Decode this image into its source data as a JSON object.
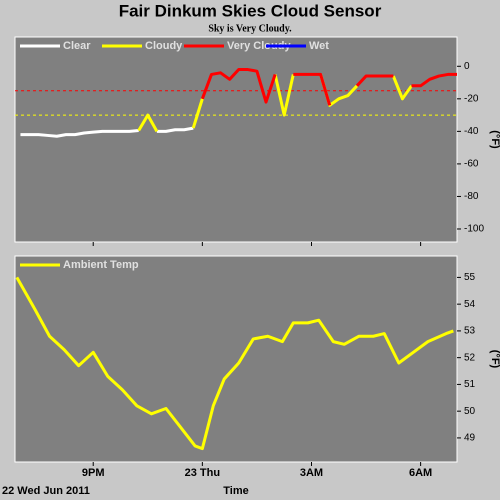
{
  "title": "Fair Dinkum Skies Cloud Sensor",
  "subtitle": "Sky is Very Cloudy.",
  "chart_data": [
    {
      "type": "line",
      "y_label": "(°F)",
      "x": [
        19,
        19.25,
        19.5,
        19.75,
        20,
        20.25,
        20.5,
        20.75,
        21,
        21.25,
        21.5,
        21.75,
        22,
        22.25,
        22.5,
        22.75,
        23,
        23.25,
        23.5,
        23.75,
        24,
        24.25,
        24.5,
        24.75,
        25,
        25.25,
        25.5,
        25.75,
        26,
        26.25,
        26.5,
        26.75,
        27,
        27.25,
        27.5,
        27.75,
        28,
        28.25,
        28.5,
        28.75,
        29,
        29.25,
        29.5,
        29.75,
        30,
        30.25,
        30.5,
        30.75,
        31
      ],
      "series": [
        {
          "name": "Clear",
          "color": "#ffffff",
          "values": [
            -42,
            -42,
            -42,
            -42.5,
            -43,
            -42,
            -42,
            -41,
            -40.5,
            -40,
            -40,
            -40,
            -40,
            -39.5,
            null,
            -40,
            -40,
            -39,
            -39,
            -38,
            null,
            null,
            null,
            null,
            null,
            null,
            null,
            null,
            null,
            null,
            null,
            null,
            null,
            null,
            null,
            null,
            null,
            null,
            null,
            null,
            null,
            null,
            null,
            null,
            null,
            null,
            null,
            null,
            null
          ]
        },
        {
          "name": "Cloudy",
          "color": "#ffff00",
          "values": [
            null,
            null,
            null,
            null,
            null,
            null,
            null,
            null,
            null,
            null,
            null,
            null,
            null,
            -39.5,
            -30,
            -40,
            null,
            null,
            null,
            -38,
            -20,
            null,
            null,
            null,
            null,
            null,
            null,
            null,
            -5,
            -30,
            -5,
            null,
            null,
            -5,
            -24,
            -20,
            -18,
            -12,
            null,
            null,
            null,
            -6,
            -20,
            -12,
            null,
            null,
            null,
            null,
            null
          ]
        },
        {
          "name": "Very Cloudy",
          "color": "#ff0000",
          "values": [
            null,
            null,
            null,
            null,
            null,
            null,
            null,
            null,
            null,
            null,
            null,
            null,
            null,
            null,
            null,
            null,
            null,
            null,
            null,
            null,
            -20,
            -5,
            -4,
            -8,
            -2,
            -2,
            -3,
            -22,
            -5,
            null,
            -5,
            -5,
            -5,
            -5,
            -24,
            null,
            null,
            -12,
            -6,
            -6,
            -6,
            -6,
            null,
            -12,
            -12,
            -8,
            -6,
            -5,
            -5
          ]
        },
        {
          "name": "Wet",
          "color": "#0000ff",
          "values": [
            null,
            null,
            null,
            null,
            null,
            null,
            null,
            null,
            null,
            null,
            null,
            null,
            null,
            null,
            null,
            null,
            null,
            null,
            null,
            null,
            null,
            null,
            null,
            null,
            null,
            null,
            null,
            null,
            null,
            null,
            null,
            null,
            null,
            null,
            null,
            null,
            null,
            null,
            null,
            null,
            null,
            null,
            null,
            null,
            null,
            null,
            null,
            null,
            null
          ]
        }
      ],
      "thresholds": [
        {
          "value": -15,
          "color": "#ff0000"
        },
        {
          "value": -30,
          "color": "#ffff00"
        }
      ],
      "xlim": [
        18.85,
        31
      ],
      "ylim": [
        -108,
        18
      ],
      "yticks": [
        0,
        -20,
        -40,
        -60,
        -80,
        -100
      ],
      "xticks": [
        21,
        24,
        27,
        30
      ]
    },
    {
      "type": "line",
      "y_label": "(°F)",
      "x_label": "Time",
      "date_label": "22 Wed Jun 2011",
      "x": [
        18.9,
        19.4,
        19.8,
        20.2,
        20.6,
        21.0,
        21.4,
        21.8,
        22.2,
        22.6,
        23.0,
        23.4,
        23.8,
        24.0,
        24.3,
        24.6,
        25.0,
        25.4,
        25.8,
        26.2,
        26.5,
        26.9,
        27.2,
        27.6,
        27.9,
        28.3,
        28.7,
        29.0,
        29.4,
        29.8,
        30.2,
        30.7,
        30.9
      ],
      "series": [
        {
          "name": "Ambient Temp",
          "color": "#ffff00",
          "values": [
            55,
            53.8,
            52.8,
            52.3,
            51.7,
            52.2,
            51.3,
            50.8,
            50.2,
            49.9,
            50.1,
            49.4,
            48.7,
            48.6,
            50.2,
            51.2,
            51.8,
            52.7,
            52.8,
            52.6,
            53.3,
            53.3,
            53.4,
            52.6,
            52.5,
            52.8,
            52.8,
            52.9,
            51.8,
            52.2,
            52.6,
            52.9,
            53
          ]
        }
      ],
      "xlim": [
        18.85,
        31
      ],
      "ylim": [
        48.1,
        55.8
      ],
      "yticks": [
        49,
        50,
        51,
        52,
        53,
        54,
        55
      ],
      "xticks": [
        {
          "value": 21,
          "label": "9PM"
        },
        {
          "value": 24,
          "label": "23 Thu"
        },
        {
          "value": 27,
          "label": "3AM"
        },
        {
          "value": 30,
          "label": "6AM"
        }
      ]
    }
  ]
}
